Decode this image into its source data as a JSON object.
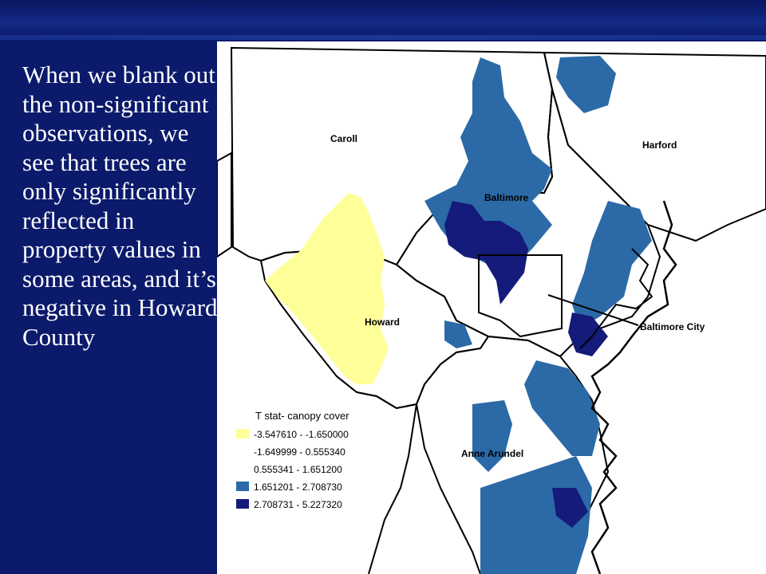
{
  "slide_text": "When we blank out the non-significant observations, we see that trees are only significantly reflected in property values in some areas, and it’s negative in Howard County",
  "map": {
    "labels": {
      "caroll": "Caroll",
      "harford": "Harford",
      "baltimore": "Baltimore",
      "howard": "Howard",
      "baltimore_city": "Baltimore City",
      "anne_arundel": "Anne Arundel"
    },
    "legend": {
      "title": "T stat- canopy cover",
      "items": [
        {
          "range": "-3.547610 - -1.650000",
          "color": "#ffff99"
        },
        {
          "range": "-1.649999 - 0.555340",
          "color": "#ffffff"
        },
        {
          "range": "0.555341 - 1.651200",
          "color": "#ffffff"
        },
        {
          "range": "1.651201 - 2.708730",
          "color": "#2b6aa6"
        },
        {
          "range": "2.708731 - 5.227320",
          "color": "#141b7a"
        }
      ]
    }
  }
}
